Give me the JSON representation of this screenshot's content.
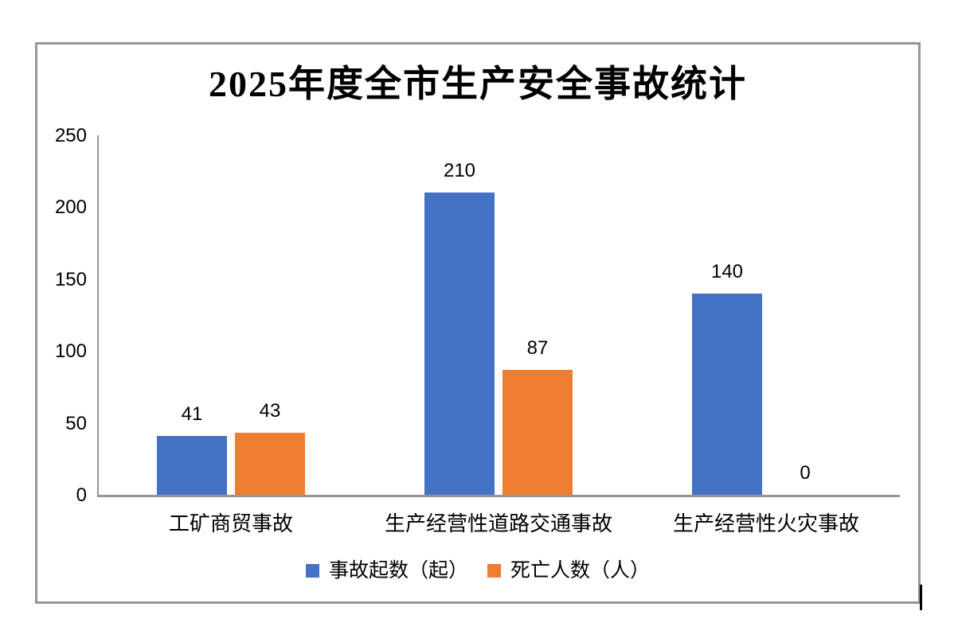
{
  "chart_data": {
    "type": "bar",
    "title": "2025年度全市生产安全事故统计",
    "categories": [
      "工矿商贸事故",
      "生产经营性道路交通事故",
      "生产经营性火灾事故"
    ],
    "series": [
      {
        "name": "事故起数（起）",
        "color": "#4472C4",
        "values": [
          41,
          210,
          140
        ]
      },
      {
        "name": "死亡人数（人）",
        "color": "#ED7D31",
        "values": [
          43,
          87,
          0
        ]
      }
    ],
    "xlabel": "",
    "ylabel": "",
    "ylim": [
      0,
      250
    ],
    "yticks": [
      0,
      50,
      100,
      150,
      200,
      250
    ],
    "grid": false,
    "data_labels": true,
    "legend_position": "bottom",
    "axis_color": "#969696"
  }
}
